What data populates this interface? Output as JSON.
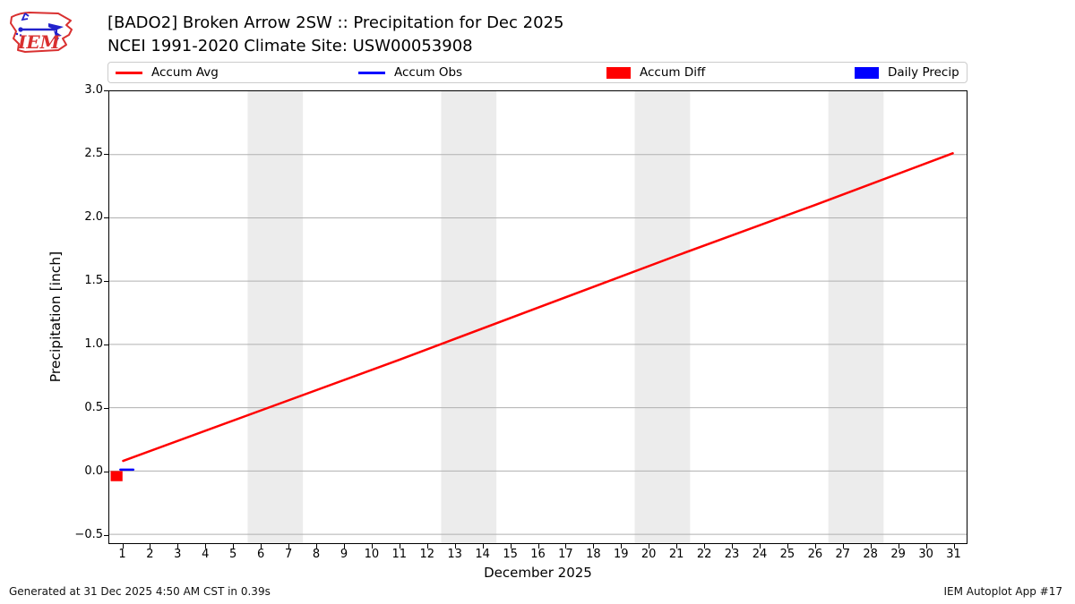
{
  "header": {
    "logo_text": "IEM"
  },
  "legend": {
    "items": [
      {
        "label": "Accum Avg",
        "type": "line",
        "color": "#ff0000"
      },
      {
        "label": "Accum Obs",
        "type": "line",
        "color": "#0000ff"
      },
      {
        "label": "Accum Diff",
        "type": "patch",
        "color": "#ff0000"
      },
      {
        "label": "Daily Precip",
        "type": "patch",
        "color": "#0000ff"
      }
    ]
  },
  "chart_data": {
    "type": "line",
    "title": "[BADO2] Broken Arrow 2SW :: Precipitation for Dec 2025",
    "subtitle": "NCEI 1991-2020 Climate Site: USW00053908",
    "xlabel": "December 2025",
    "ylabel": "Precipitation [inch]",
    "xlim": [
      0.5,
      31.5
    ],
    "ylim": [
      -0.57,
      3.0
    ],
    "xticks": [
      1,
      2,
      3,
      4,
      5,
      6,
      7,
      8,
      9,
      10,
      11,
      12,
      13,
      14,
      15,
      16,
      17,
      18,
      19,
      20,
      21,
      22,
      23,
      24,
      25,
      26,
      27,
      28,
      29,
      30,
      31
    ],
    "yticks": [
      {
        "v": 3.0,
        "label": "3.0"
      },
      {
        "v": 2.5,
        "label": "2.5"
      },
      {
        "v": 2.0,
        "label": "2.0"
      },
      {
        "v": 1.5,
        "label": "1.5"
      },
      {
        "v": 1.0,
        "label": "1.0"
      },
      {
        "v": 0.5,
        "label": "0.5"
      },
      {
        "v": 0.0,
        "label": "0.0"
      },
      {
        "v": -0.5,
        "label": "−0.5"
      }
    ],
    "grid": "horizontal",
    "grid_color": "#b0b0b0",
    "weekend_band_color": "#ececec",
    "weekend_bands": [
      [
        5.5,
        7.5
      ],
      [
        12.5,
        14.5
      ],
      [
        19.5,
        21.5
      ],
      [
        26.5,
        28.5
      ]
    ],
    "series": [
      {
        "name": "Accum Avg",
        "type": "line",
        "color": "#ff0000",
        "x": [
          1,
          6,
          11,
          16,
          21,
          26,
          31
        ],
        "y": [
          0.08,
          0.48,
          0.88,
          1.29,
          1.7,
          2.1,
          2.51
        ]
      },
      {
        "name": "Accum Obs",
        "type": "line",
        "color": "#0000ff",
        "x": [
          0.9,
          1.37
        ],
        "y": [
          0.0,
          0.0
        ]
      },
      {
        "name": "Accum Diff",
        "type": "bar",
        "color": "#ff0000",
        "x": [
          1
        ],
        "y": [
          -0.08
        ]
      },
      {
        "name": "Daily Precip",
        "type": "bar",
        "color": "#0000ff",
        "x": [
          1
        ],
        "y": [
          0.0
        ]
      }
    ]
  },
  "footer": {
    "generated": "Generated at 31 Dec 2025 4:50 AM CST in 0.39s",
    "app": "IEM Autoplot App #17"
  }
}
